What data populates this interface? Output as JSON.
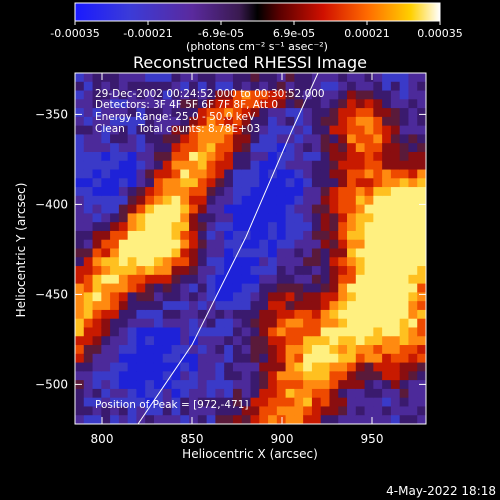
{
  "colorbar": {
    "ticks": [
      "-0.00035",
      "-0.00021",
      "-6.9e-05",
      "6.9e-05",
      "0.00021",
      "0.00035"
    ],
    "units_label": "(photons cm⁻² s⁻¹ asec⁻²)",
    "range": [
      -0.00035,
      0.00035
    ]
  },
  "chart_data": {
    "type": "heatmap",
    "title": "Reconstructed RHESSI Image",
    "xlabel": "Heliocentric X (arcsec)",
    "ylabel": "Heliocentric Y (arcsec)",
    "xlim": [
      785,
      980
    ],
    "ylim": [
      -522,
      -327
    ],
    "x_ticks": [
      800,
      850,
      900,
      950
    ],
    "y_ticks": [
      -350,
      -400,
      -450,
      -500
    ],
    "grid": false,
    "colormap": "rainbow-to-hot (blue, purple, red, orange, yellow, white)",
    "limb_curve": [
      [
        820,
        -522
      ],
      [
        850,
        -478
      ],
      [
        880,
        -418
      ],
      [
        905,
        -360
      ],
      [
        920,
        -327
      ]
    ],
    "peak_position": [
      972,
      -471
    ],
    "info_lines": [
      "29-Dec-2002 00:24:52.000 to 00:30:52.000",
      "Detectors: 3F 4F 5F 6F 7F 8F, Att 0",
      "Energy Range: 25.0 - 50.0 keV",
      "Clean    Total counts: 8.78E+03"
    ],
    "peak_label": "Position of Peak = [972,-471]"
  },
  "footer": {
    "timestamp": "4-May-2022 18:18"
  }
}
